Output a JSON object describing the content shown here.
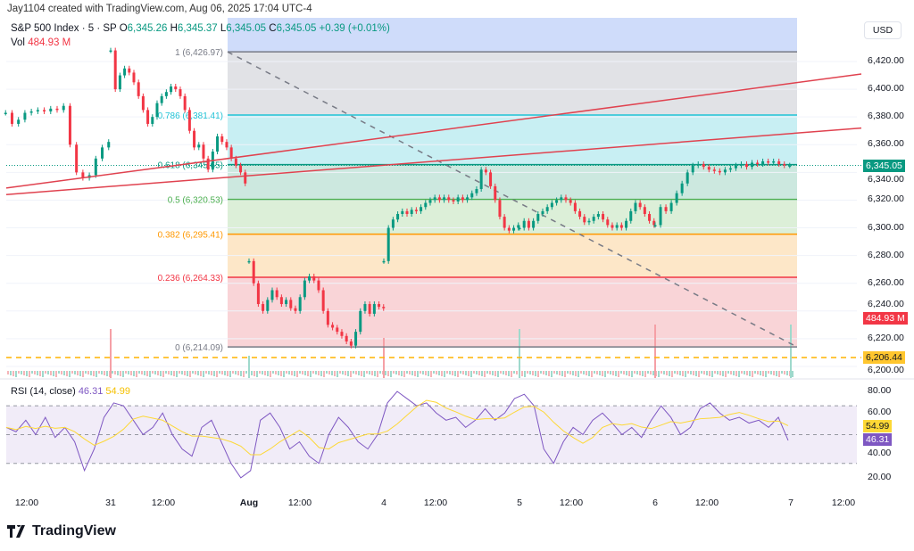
{
  "header": {
    "credit": "Jay1104 created with TradingView.com, Aug 06, 2025 17:04 UTC-4",
    "symbol": "S&P 500 Index · 5 · SP",
    "o_label": "O",
    "o": "6,345.26",
    "h_label": "H",
    "h": "6,345.37",
    "l_label": "L",
    "l": "6,345.05",
    "c_label": "C",
    "c": "6,345.05",
    "change": "+0.39 (+0.01%)",
    "vol_label": "Vol",
    "vol": "484.93 M"
  },
  "colors": {
    "up": "#089981",
    "down": "#f23645",
    "rsi": "#7e57c2",
    "rsi_ma": "#fdd835",
    "trend": "#e0424f"
  },
  "price_axis": {
    "currency": "USD",
    "ticks": [
      "6,420.00",
      "6,400.00",
      "6,380.00",
      "6,360.00",
      "6,340.00",
      "6,320.00",
      "6,300.00",
      "6,280.00",
      "6,260.00",
      "6,240.00",
      "6,220.00",
      "6,200.00"
    ],
    "last_price_label": "6,345.05",
    "volume_label": "484.93 M",
    "hline_label": "6,206.44"
  },
  "rsi": {
    "title": "RSI (14, close)",
    "value": "46.31",
    "ma": "54.99",
    "ticks": [
      "80.00",
      "60.00",
      "40.00",
      "20.00"
    ],
    "upper": 70,
    "lower": 30,
    "middle": 50
  },
  "time_axis": [
    "12:00",
    "31",
    "12:00",
    "Aug",
    "12:00",
    "4",
    "12:00",
    "5",
    "12:00",
    "6",
    "12:00",
    "7",
    "12:00"
  ],
  "logo": "TradingView",
  "chart_data": {
    "type": "candlestick",
    "ylim": [
      6195,
      6440
    ],
    "fib_retracement": [
      {
        "level": "1",
        "price": 6426.97,
        "label": "1 (6,426.97)",
        "line": "#787b86",
        "fill": "#e1e2e6"
      },
      {
        "level": "0.786",
        "price": 6381.41,
        "label": "0.786 (6,381.41)",
        "line": "#22c3d6",
        "fill": "#c8eff3"
      },
      {
        "level": "0.618",
        "price": 6345.65,
        "label": "0.618 (6,345.65)",
        "line": "#089981",
        "fill": "#cce8df"
      },
      {
        "level": "0.5",
        "price": 6320.53,
        "label": "0.5 (6,320.53)",
        "line": "#4caf50",
        "fill": "#dcefd8"
      },
      {
        "level": "0.382",
        "price": 6295.41,
        "label": "0.382 (6,295.41)",
        "line": "#ff9800",
        "fill": "#fde7c8"
      },
      {
        "level": "0.236",
        "price": 6264.33,
        "label": "0.236 (6,264.33)",
        "line": "#f23645",
        "fill": "#f9d4d7"
      },
      {
        "level": "0",
        "price": 6214.09,
        "label": "0 (6,214.09)",
        "line": "#787b86",
        "fill": null
      }
    ],
    "horizontal_line": 6206.44,
    "trendlines": [
      {
        "from_price": 6328.7,
        "to_price": 6411
      },
      {
        "from_price": 6324,
        "to_price": 6372
      }
    ],
    "sessions": [
      {
        "day": "Jul 30",
        "start": "11:00",
        "closes": [
          6383,
          6375,
          6378,
          6383,
          6384,
          6385,
          6384,
          6386,
          6385,
          6388,
          6360,
          6340,
          6336,
          6338,
          6350,
          6358,
          6362
        ]
      },
      {
        "day": "Jul 31",
        "start": "09:30",
        "closes": [
          6428,
          6400,
          6410,
          6415,
          6412,
          6405,
          6395,
          6385,
          6375,
          6380,
          6390,
          6395,
          6398,
          6402,
          6400,
          6395,
          6385,
          6370,
          6358,
          6360,
          6350,
          6342,
          6355,
          6366,
          6362,
          6358,
          6350,
          6345,
          6340,
          6332
        ]
      },
      {
        "day": "Aug 1",
        "start": "09:30",
        "closes": [
          6276,
          6260,
          6245,
          6240,
          6248,
          6255,
          6250,
          6245,
          6248,
          6242,
          6240,
          6250,
          6262,
          6265,
          6262,
          6255,
          6240,
          6230,
          6228,
          6225,
          6222,
          6218,
          6215,
          6225,
          6240,
          6245,
          6238,
          6245,
          6243,
          6242
        ]
      },
      {
        "day": "Aug 4",
        "start": "09:30",
        "closes": [
          6276,
          6300,
          6306,
          6310,
          6312,
          6310,
          6313,
          6312,
          6315,
          6318,
          6320,
          6322,
          6320,
          6322,
          6320,
          6319,
          6322,
          6320,
          6322,
          6325,
          6328,
          6342,
          6340,
          6330,
          6320,
          6308,
          6300,
          6298,
          6300,
          6302
        ]
      },
      {
        "day": "Aug 5",
        "start": "09:30",
        "closes": [
          6300,
          6305,
          6300,
          6305,
          6310,
          6312,
          6315,
          6318,
          6320,
          6322,
          6320,
          6318,
          6312,
          6308,
          6304,
          6305,
          6308,
          6310,
          6306,
          6302,
          6300,
          6302,
          6300,
          6305,
          6312,
          6318,
          6315,
          6310,
          6305,
          6302
        ]
      },
      {
        "day": "Aug 6",
        "start": "09:30",
        "closes": [
          6302,
          6315,
          6312,
          6318,
          6325,
          6332,
          6340,
          6345,
          6346,
          6344,
          6342,
          6341,
          6340,
          6342,
          6343,
          6345,
          6346,
          6344,
          6347,
          6346,
          6348,
          6347,
          6348,
          6346,
          6345,
          6345
        ]
      }
    ],
    "volume_spikes_at_session_boundaries": true,
    "rsi_values": [
      55,
      52,
      60,
      50,
      62,
      48,
      55,
      45,
      25,
      40,
      62,
      72,
      70,
      60,
      50,
      55,
      65,
      50,
      40,
      35,
      55,
      60,
      45,
      30,
      20,
      25,
      60,
      65,
      55,
      40,
      45,
      35,
      30,
      50,
      62,
      55,
      45,
      40,
      50,
      72,
      80,
      75,
      70,
      72,
      65,
      60,
      62,
      55,
      60,
      68,
      60,
      65,
      75,
      78,
      70,
      40,
      30,
      45,
      55,
      50,
      60,
      65,
      58,
      50,
      55,
      48,
      60,
      70,
      62,
      50,
      55,
      68,
      72,
      65,
      60,
      62,
      58,
      60,
      55,
      62,
      46
    ]
  }
}
